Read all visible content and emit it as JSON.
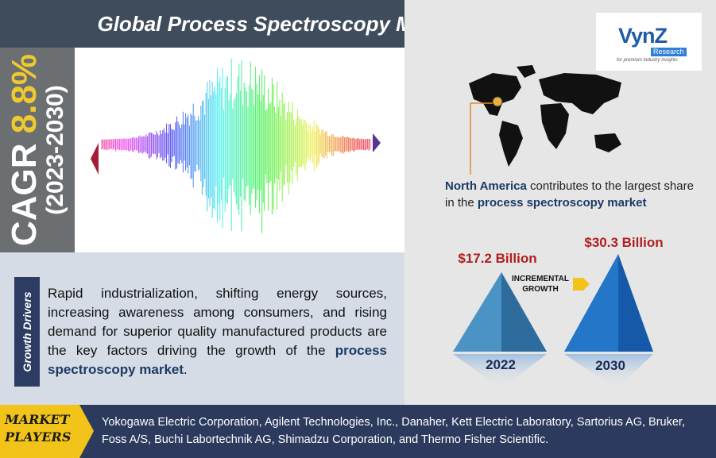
{
  "title": "Global Process Spectroscopy Market",
  "cagr": {
    "label": "CAGR",
    "value": "8.8%",
    "period": "(2023-2030)"
  },
  "logo": {
    "brand": "VynZ",
    "sub": "Research",
    "tagline": "for premium industry insights"
  },
  "region": {
    "name": "North America",
    "text_mid": " contributes to the largest share in the ",
    "market": "process spectroscopy market"
  },
  "growth": {
    "value_2022": "$17.2 Billion",
    "value_2030": "$30.3 Billion",
    "incremental_line1": "INCREMENTAL",
    "incremental_line2": "GROWTH",
    "year_2022": "2022",
    "year_2030": "2030"
  },
  "drivers": {
    "label": "Growth Drivers",
    "text": "Rapid industrialization, shifting energy sources, increasing awareness among consumers, and rising demand for superior quality manufactured products are the key factors driving the growth of the ",
    "market": "process spectroscopy market",
    "end": "."
  },
  "players": {
    "label_line1": "MARKET",
    "label_line2": "PLAYERS",
    "text": "Yokogawa Electric Corporation, Agilent Technologies, Inc., Danaher, Kett Electric Laboratory, Sartorius AG, Bruker, Foss A/S, Buchi Labortechnik AG, Shimadzu Corporation, and Thermo Fisher Scientific."
  },
  "colors": {
    "title_bg": "#3f4c5c",
    "cagr_bg": "#6b6f72",
    "cagr_value": "#f0c830",
    "navy": "#2c3a5e",
    "value_red": "#b02020",
    "gold": "#f2c41a"
  }
}
